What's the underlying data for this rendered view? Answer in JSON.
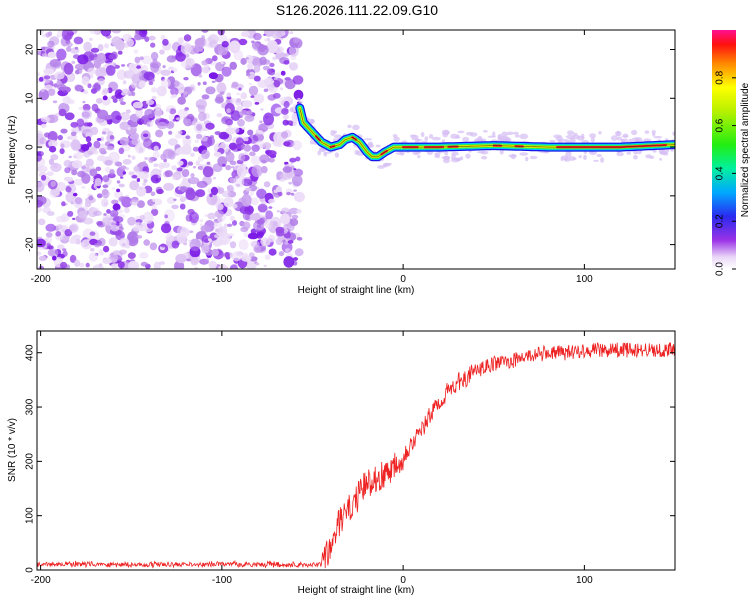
{
  "title": "S126.2026.111.22.09.G10",
  "chart_data": [
    {
      "type": "heatmap",
      "name": "spectrogram",
      "xlabel": "Height of straight line (km)",
      "ylabel": "Frequency (Hz)",
      "xlim": [
        -202,
        150
      ],
      "ylim": [
        -25,
        24
      ],
      "xticks": [
        -200,
        -100,
        0,
        100
      ],
      "yticks": [
        -20,
        -10,
        0,
        10,
        20
      ],
      "noise_region_x": [
        -202,
        -57
      ],
      "ridge": {
        "x": [
          -57,
          -55,
          -50,
          -45,
          -40,
          -35,
          -32,
          -28,
          -24,
          -20,
          -17,
          -14,
          -10,
          -5,
          0,
          20,
          50,
          80,
          100,
          120,
          150
        ],
        "freq": [
          8,
          5,
          3,
          1,
          0,
          0.5,
          1.5,
          2,
          1,
          -1,
          -2,
          -2,
          -1,
          0,
          0,
          0,
          0.3,
          0,
          0,
          0,
          0.5
        ]
      },
      "colorbar": {
        "label": "Normalized spectral amplitude",
        "min": 0.0,
        "max": 1.0,
        "ticks": [
          "0.0",
          "0.2",
          "0.4",
          "0.6",
          "0.8"
        ],
        "ticks_values": [
          0.0,
          0.2,
          0.4,
          0.6,
          0.8
        ]
      }
    },
    {
      "type": "line",
      "name": "snr",
      "xlabel": "Height of straight line (km)",
      "ylabel": "SNR (10 * v/v)",
      "xlim": [
        -202,
        150
      ],
      "ylim": [
        0,
        440
      ],
      "xticks": [
        -200,
        -100,
        0,
        100
      ],
      "yticks": [
        0,
        100,
        200,
        300,
        400
      ],
      "color": "#ee2222",
      "series": [
        {
          "name": "SNR",
          "x": [
            -202,
            -180,
            -150,
            -120,
            -100,
            -80,
            -60,
            -45,
            -40,
            -35,
            -30,
            -25,
            -20,
            -15,
            -10,
            -5,
            0,
            5,
            10,
            15,
            20,
            25,
            30,
            35,
            40,
            50,
            60,
            70,
            80,
            90,
            100,
            110,
            120,
            130,
            140,
            150
          ],
          "values": [
            10,
            11,
            10,
            10,
            11,
            10,
            10,
            10,
            40,
            90,
            110,
            135,
            160,
            170,
            175,
            195,
            210,
            235,
            255,
            285,
            310,
            330,
            345,
            355,
            365,
            380,
            385,
            395,
            400,
            400,
            405,
            405,
            405,
            405,
            405,
            405
          ]
        }
      ]
    }
  ]
}
